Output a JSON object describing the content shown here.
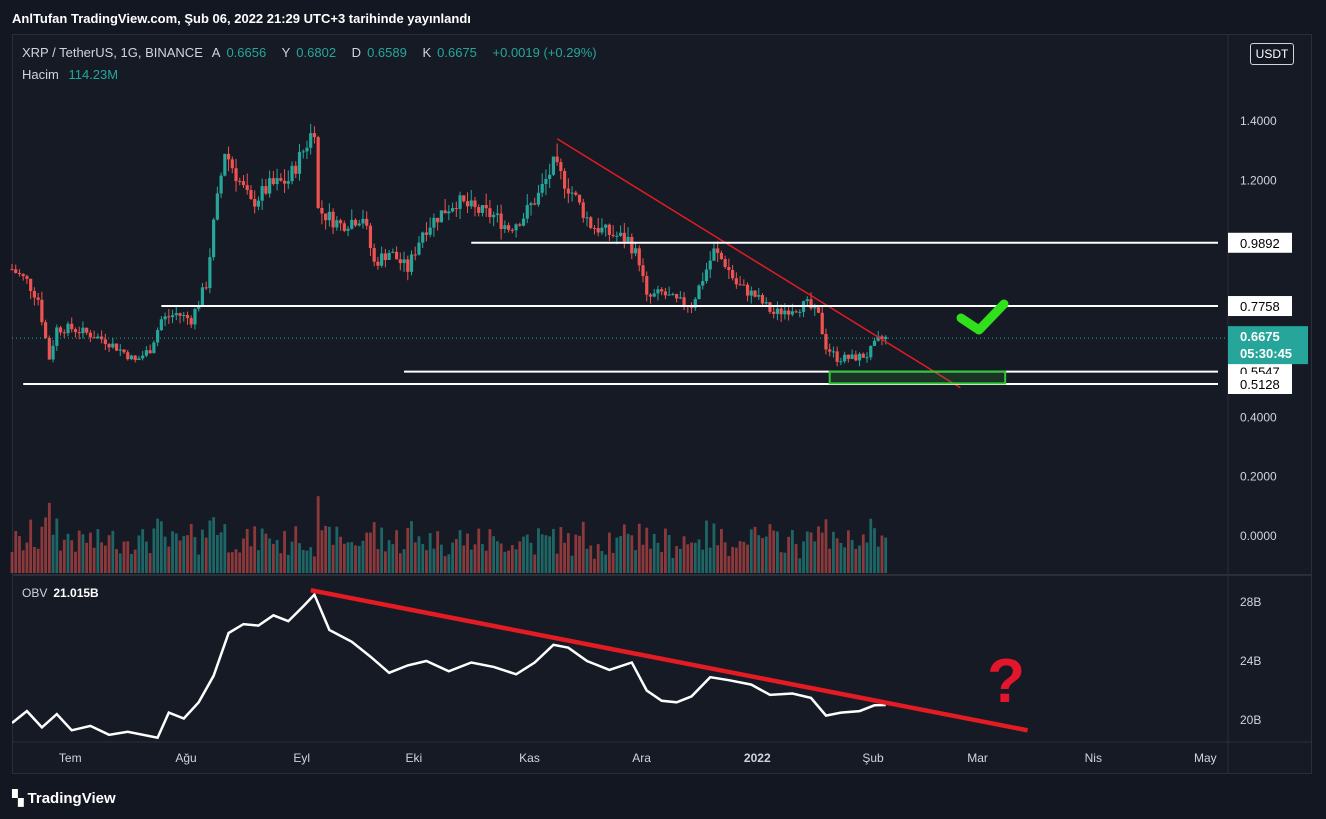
{
  "header": {
    "title": "AnlTufan TradingView.com, Şub 06, 2022 21:29 UTC+3 tarihinde yayınlandı"
  },
  "legend": {
    "symbol": "XRP / TetherUS, 1G, BINANCE",
    "open_key": "A",
    "open": "0.6656",
    "high_key": "Y",
    "high": "0.6802",
    "low_key": "D",
    "low": "0.6589",
    "close_key": "K",
    "close": "0.6675",
    "change": "+0.0019 (+0.29%)",
    "volume_label": "Hacim",
    "volume_value": "114.23M"
  },
  "currency_button": "USDT",
  "obv": {
    "label": "OBV",
    "value": "21.015B"
  },
  "footer": {
    "logo": "TradingView"
  },
  "colors": {
    "up": "#26a69a",
    "down": "#ef5350",
    "trendline": "#e31b23",
    "support": "#ffffff",
    "zone": "#31c634",
    "check": "#31e01c",
    "question": "#e3162c",
    "obv_line": "#ffffff",
    "background": "#161a25"
  },
  "icons": {
    "check": "check-mark-icon",
    "question": "question-mark-icon"
  },
  "chart_data": [
    {
      "type": "candlestick",
      "title": "XRP / TetherUS, 1G, BINANCE",
      "y_axis_ticks": [
        "1.4000",
        "1.2000",
        "0.4000",
        "0.2000",
        "0.0000"
      ],
      "x_axis_ticks": [
        "Tem",
        "Ağu",
        "Eyl",
        "Eki",
        "Kas",
        "Ara",
        "2022",
        "Şub",
        "Mar",
        "Nis",
        "May"
      ],
      "ylim": [
        0.0,
        1.48
      ],
      "price_pills": [
        "0.9892",
        "0.7758",
        "0.5547",
        "0.5128"
      ],
      "last_price": {
        "value": "0.6675",
        "countdown": "05:30:45"
      },
      "series": [
        {
          "name": "close",
          "x_start": "2021-06-17",
          "x_end": "2022-02-06",
          "anchors": [
            [
              "2021-06-17",
              0.9
            ],
            [
              "2021-06-21",
              0.86
            ],
            [
              "2021-06-24",
              0.8
            ],
            [
              "2021-06-27",
              0.6
            ],
            [
              "2021-06-29",
              0.7
            ],
            [
              "2021-07-03",
              0.7
            ],
            [
              "2021-07-08",
              0.68
            ],
            [
              "2021-07-12",
              0.66
            ],
            [
              "2021-07-17",
              0.62
            ],
            [
              "2021-07-20",
              0.59
            ],
            [
              "2021-07-24",
              0.63
            ],
            [
              "2021-07-27",
              0.73
            ],
            [
              "2021-07-31",
              0.75
            ],
            [
              "2021-08-04",
              0.73
            ],
            [
              "2021-08-08",
              0.85
            ],
            [
              "2021-08-10",
              1.05
            ],
            [
              "2021-08-13",
              1.3
            ],
            [
              "2021-08-16",
              1.22
            ],
            [
              "2021-08-20",
              1.12
            ],
            [
              "2021-08-25",
              1.18
            ],
            [
              "2021-08-30",
              1.2
            ],
            [
              "2021-09-03",
              1.3
            ],
            [
              "2021-09-06",
              1.38
            ],
            [
              "2021-09-07",
              1.1
            ],
            [
              "2021-09-13",
              1.05
            ],
            [
              "2021-09-19",
              1.08
            ],
            [
              "2021-09-22",
              0.92
            ],
            [
              "2021-09-26",
              0.96
            ],
            [
              "2021-10-01",
              0.9
            ],
            [
              "2021-10-05",
              1.03
            ],
            [
              "2021-10-10",
              1.09
            ],
            [
              "2021-10-14",
              1.13
            ],
            [
              "2021-10-19",
              1.1
            ],
            [
              "2021-10-24",
              1.08
            ],
            [
              "2021-10-28",
              1.04
            ],
            [
              "2021-11-01",
              1.08
            ],
            [
              "2021-11-05",
              1.15
            ],
            [
              "2021-11-09",
              1.25
            ],
            [
              "2021-11-14",
              1.16
            ],
            [
              "2021-11-19",
              1.05
            ],
            [
              "2021-11-24",
              1.02
            ],
            [
              "2021-11-29",
              1.0
            ],
            [
              "2021-12-02",
              0.93
            ],
            [
              "2021-12-04",
              0.8
            ],
            [
              "2021-12-08",
              0.82
            ],
            [
              "2021-12-12",
              0.79
            ],
            [
              "2021-12-16",
              0.78
            ],
            [
              "2021-12-22",
              0.96
            ],
            [
              "2021-12-25",
              0.92
            ],
            [
              "2021-12-28",
              0.85
            ],
            [
              "2022-01-02",
              0.81
            ],
            [
              "2022-01-07",
              0.75
            ],
            [
              "2022-01-12",
              0.77
            ],
            [
              "2022-01-16",
              0.78
            ],
            [
              "2022-01-19",
              0.74
            ],
            [
              "2022-01-21",
              0.64
            ],
            [
              "2022-01-24",
              0.6
            ],
            [
              "2022-01-28",
              0.6
            ],
            [
              "2022-02-01",
              0.61
            ],
            [
              "2022-02-04",
              0.66
            ],
            [
              "2022-02-06",
              0.6675
            ]
          ]
        }
      ],
      "annotations": [
        {
          "type": "trendline",
          "from": [
            "2021-11-10",
            1.34
          ],
          "to": [
            "2022-02-26",
            0.5
          ]
        },
        {
          "type": "horizontal",
          "from": [
            "2021-10-18",
            0.9892
          ],
          "to": [
            "2022-05-06",
            0.9892
          ]
        },
        {
          "type": "horizontal",
          "from": [
            "2021-07-27",
            0.7758
          ],
          "to": [
            "2022-05-06",
            0.7758
          ]
        },
        {
          "type": "horizontal",
          "from": [
            "2021-06-20",
            0.5128
          ],
          "to": [
            "2022-05-06",
            0.5128
          ]
        },
        {
          "type": "horizontal",
          "from": [
            "2021-09-30",
            0.5547
          ],
          "to": [
            "2022-05-06",
            0.5547
          ]
        },
        {
          "type": "zone",
          "from": [
            "2022-01-22",
            0.555
          ],
          "to": [
            "2022-03-10",
            0.515
          ]
        }
      ]
    },
    {
      "type": "line",
      "title": "OBV",
      "y_axis_ticks": [
        "28B",
        "24B",
        "20B"
      ],
      "ylim": [
        18.6,
        29.4
      ],
      "series": [
        {
          "name": "OBV",
          "points": [
            [
              "2021-06-17",
              19.8
            ],
            [
              "2021-06-21",
              20.6
            ],
            [
              "2021-06-25",
              19.5
            ],
            [
              "2021-06-29",
              20.4
            ],
            [
              "2021-07-03",
              19.3
            ],
            [
              "2021-07-08",
              19.6
            ],
            [
              "2021-07-13",
              19.0
            ],
            [
              "2021-07-18",
              19.2
            ],
            [
              "2021-07-26",
              18.8
            ],
            [
              "2021-07-29",
              20.5
            ],
            [
              "2021-08-02",
              20.1
            ],
            [
              "2021-08-06",
              21.2
            ],
            [
              "2021-08-10",
              23.0
            ],
            [
              "2021-08-14",
              25.9
            ],
            [
              "2021-08-18",
              26.5
            ],
            [
              "2021-08-22",
              26.4
            ],
            [
              "2021-08-26",
              27.1
            ],
            [
              "2021-08-30",
              26.7
            ],
            [
              "2021-09-03",
              27.7
            ],
            [
              "2021-09-06",
              28.5
            ],
            [
              "2021-09-10",
              26.1
            ],
            [
              "2021-09-16",
              25.3
            ],
            [
              "2021-09-21",
              24.3
            ],
            [
              "2021-09-26",
              23.2
            ],
            [
              "2021-10-01",
              23.7
            ],
            [
              "2021-10-06",
              24.0
            ],
            [
              "2021-10-12",
              23.3
            ],
            [
              "2021-10-18",
              23.9
            ],
            [
              "2021-10-24",
              23.6
            ],
            [
              "2021-10-30",
              23.1
            ],
            [
              "2021-11-04",
              23.9
            ],
            [
              "2021-11-09",
              25.1
            ],
            [
              "2021-11-13",
              24.9
            ],
            [
              "2021-11-18",
              24.0
            ],
            [
              "2021-11-24",
              23.4
            ],
            [
              "2021-11-30",
              23.9
            ],
            [
              "2021-12-04",
              22.0
            ],
            [
              "2021-12-08",
              21.3
            ],
            [
              "2021-12-12",
              21.2
            ],
            [
              "2021-12-16",
              21.6
            ],
            [
              "2021-12-21",
              22.9
            ],
            [
              "2021-12-26",
              22.7
            ],
            [
              "2022-01-01",
              22.4
            ],
            [
              "2022-01-06",
              21.7
            ],
            [
              "2022-01-12",
              21.8
            ],
            [
              "2022-01-17",
              21.5
            ],
            [
              "2022-01-21",
              20.3
            ],
            [
              "2022-01-25",
              20.5
            ],
            [
              "2022-01-30",
              20.6
            ],
            [
              "2022-02-03",
              21.0
            ],
            [
              "2022-02-06",
              21.015
            ]
          ]
        }
      ],
      "annotations": [
        {
          "type": "trendline",
          "from": [
            "2021-09-05",
            28.8
          ],
          "to": [
            "2022-03-16",
            19.3
          ]
        }
      ]
    }
  ]
}
